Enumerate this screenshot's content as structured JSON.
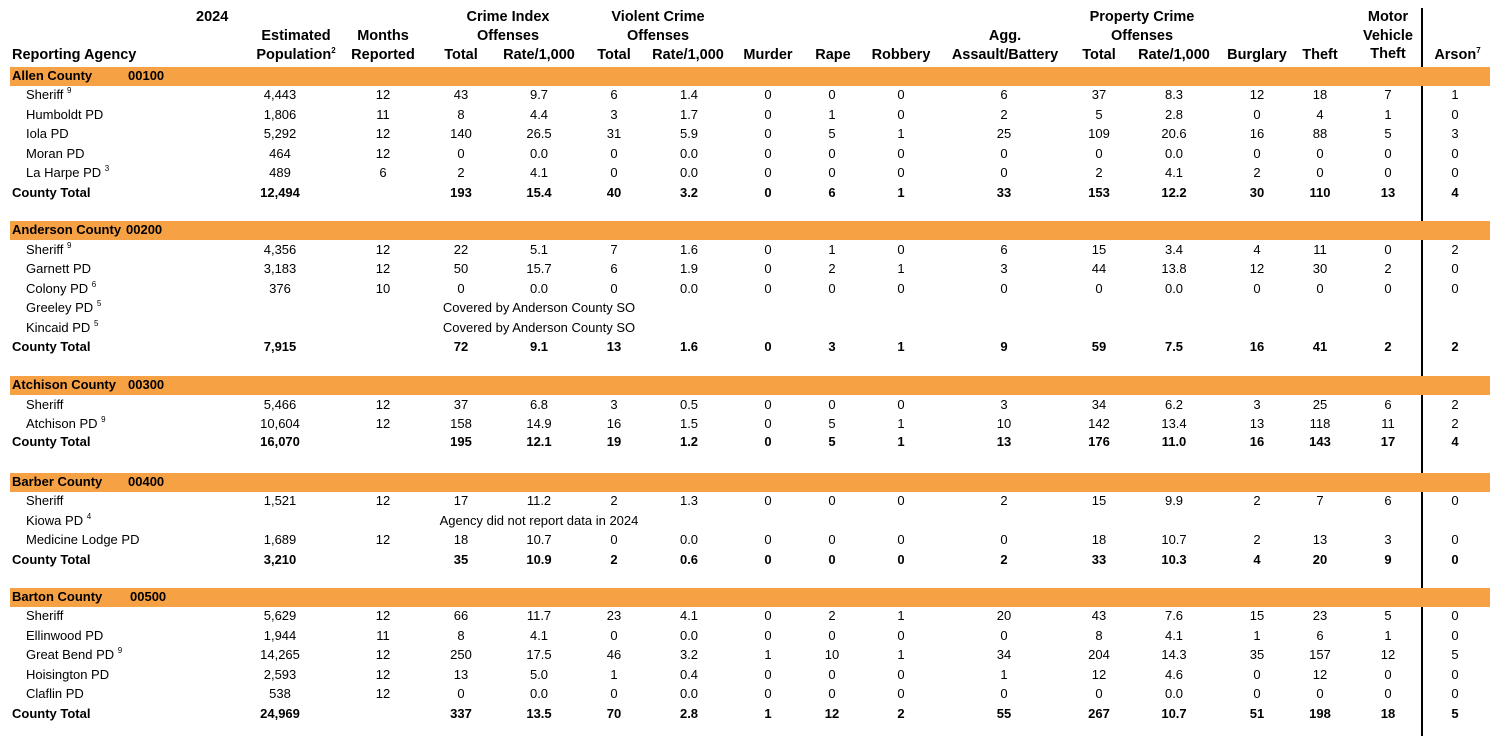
{
  "header": {
    "year": "2024",
    "reporting_agency": "Reporting Agency",
    "est_pop_line1": "Estimated",
    "est_pop_line2": "Population",
    "est_pop_sup": "2",
    "months_line1": "Months",
    "months_line2": "Reported",
    "crime_index_line1": "Crime Index",
    "crime_index_line2": "Offenses",
    "violent_line1": "Violent Crime",
    "violent_line2": "Offenses",
    "property_line1": "Property Crime",
    "property_line2": "Offenses",
    "agg_line1": "Agg.",
    "agg_line2": "Assault/Battery",
    "mv_line1": "Motor",
    "mv_line2": "Vehicle",
    "mv_line3": "Theft",
    "arson": "Arson",
    "arson_sup": "7",
    "total": "Total",
    "rate": "Rate/1,000",
    "murder": "Murder",
    "rape": "Rape",
    "robbery": "Robbery",
    "burglary": "Burglary",
    "theft": "Theft"
  },
  "counties": [
    {
      "name": "Allen County",
      "code": "00100",
      "rows": [
        {
          "agency": "Sheriff",
          "sup": "9",
          "vals": [
            "4,443",
            "12",
            "43",
            "9.7",
            "6",
            "1.4",
            "0",
            "0",
            "0",
            "6",
            "37",
            "8.3",
            "12",
            "18",
            "7",
            "1"
          ]
        },
        {
          "agency": "Humboldt PD",
          "sup": "",
          "vals": [
            "1,806",
            "11",
            "8",
            "4.4",
            "3",
            "1.7",
            "0",
            "1",
            "0",
            "2",
            "5",
            "2.8",
            "0",
            "4",
            "1",
            "0"
          ]
        },
        {
          "agency": "Iola PD",
          "sup": "",
          "vals": [
            "5,292",
            "12",
            "140",
            "26.5",
            "31",
            "5.9",
            "0",
            "5",
            "1",
            "25",
            "109",
            "20.6",
            "16",
            "88",
            "5",
            "3"
          ]
        },
        {
          "agency": "Moran PD",
          "sup": "",
          "vals": [
            "464",
            "12",
            "0",
            "0.0",
            "0",
            "0.0",
            "0",
            "0",
            "0",
            "0",
            "0",
            "0.0",
            "0",
            "0",
            "0",
            "0"
          ]
        },
        {
          "agency": "La Harpe PD",
          "sup": "3",
          "vals": [
            "489",
            "6",
            "2",
            "4.1",
            "0",
            "0.0",
            "0",
            "0",
            "0",
            "0",
            "2",
            "4.1",
            "2",
            "0",
            "0",
            "0"
          ]
        }
      ],
      "total": {
        "label": "County Total",
        "vals": [
          "12,494",
          "",
          "193",
          "15.4",
          "40",
          "3.2",
          "0",
          "6",
          "1",
          "33",
          "153",
          "12.2",
          "30",
          "110",
          "13",
          "4"
        ]
      }
    },
    {
      "name": "Anderson County",
      "code": "00200",
      "rows": [
        {
          "agency": "Sheriff",
          "sup": "9",
          "vals": [
            "4,356",
            "12",
            "22",
            "5.1",
            "7",
            "1.6",
            "0",
            "1",
            "0",
            "6",
            "15",
            "3.4",
            "4",
            "11",
            "0",
            "2"
          ]
        },
        {
          "agency": "Garnett PD",
          "sup": "",
          "vals": [
            "3,183",
            "12",
            "50",
            "15.7",
            "6",
            "1.9",
            "0",
            "2",
            "1",
            "3",
            "44",
            "13.8",
            "12",
            "30",
            "2",
            "0"
          ]
        },
        {
          "agency": "Colony PD",
          "sup": "6",
          "vals": [
            "376",
            "10",
            "0",
            "0.0",
            "0",
            "0.0",
            "0",
            "0",
            "0",
            "0",
            "0",
            "0.0",
            "0",
            "0",
            "0",
            "0"
          ]
        },
        {
          "agency": "Greeley PD",
          "sup": "5",
          "note": "Covered by Anderson County SO"
        },
        {
          "agency": "Kincaid PD",
          "sup": "5",
          "note": "Covered by Anderson County SO"
        }
      ],
      "total": {
        "label": "County Total",
        "vals": [
          "7,915",
          "",
          "72",
          "9.1",
          "13",
          "1.6",
          "0",
          "3",
          "1",
          "9",
          "59",
          "7.5",
          "16",
          "41",
          "2",
          "2"
        ]
      }
    },
    {
      "name": "Atchison County",
      "code": "00300",
      "rows": [
        {
          "agency": "Sheriff",
          "sup": "",
          "vals": [
            "5,466",
            "12",
            "37",
            "6.8",
            "3",
            "0.5",
            "0",
            "0",
            "0",
            "3",
            "34",
            "6.2",
            "3",
            "25",
            "6",
            "2"
          ]
        },
        {
          "agency": "Atchison PD",
          "sup": "9",
          "vals": [
            "10,604",
            "12",
            "158",
            "14.9",
            "16",
            "1.5",
            "0",
            "5",
            "1",
            "10",
            "142",
            "13.4",
            "13",
            "118",
            "11",
            "2"
          ]
        }
      ],
      "total": {
        "label": "County Total",
        "vals": [
          "16,070",
          "",
          "195",
          "12.1",
          "19",
          "1.2",
          "0",
          "5",
          "1",
          "13",
          "176",
          "11.0",
          "16",
          "143",
          "17",
          "4"
        ]
      }
    },
    {
      "name": "Barber County",
      "code": "00400",
      "rows": [
        {
          "agency": "Sheriff",
          "sup": "",
          "vals": [
            "1,521",
            "12",
            "17",
            "11.2",
            "2",
            "1.3",
            "0",
            "0",
            "0",
            "2",
            "15",
            "9.9",
            "2",
            "7",
            "6",
            "0"
          ]
        },
        {
          "agency": "Kiowa PD",
          "sup": "4",
          "note": "Agency did not report data in 2024"
        },
        {
          "agency": "Medicine Lodge PD",
          "sup": "",
          "vals": [
            "1,689",
            "12",
            "18",
            "10.7",
            "0",
            "0.0",
            "0",
            "0",
            "0",
            "0",
            "18",
            "10.7",
            "2",
            "13",
            "3",
            "0"
          ]
        }
      ],
      "total": {
        "label": "County Total",
        "vals": [
          "3,210",
          "",
          "35",
          "10.9",
          "2",
          "0.6",
          "0",
          "0",
          "0",
          "2",
          "33",
          "10.3",
          "4",
          "20",
          "9",
          "0"
        ]
      }
    },
    {
      "name": "Barton County",
      "code": "00500",
      "rows": [
        {
          "agency": "Sheriff",
          "sup": "",
          "vals": [
            "5,629",
            "12",
            "66",
            "11.7",
            "23",
            "4.1",
            "0",
            "2",
            "1",
            "20",
            "43",
            "7.6",
            "15",
            "23",
            "5",
            "0"
          ]
        },
        {
          "agency": "Ellinwood PD",
          "sup": "",
          "vals": [
            "1,944",
            "11",
            "8",
            "4.1",
            "0",
            "0.0",
            "0",
            "0",
            "0",
            "0",
            "8",
            "4.1",
            "1",
            "6",
            "1",
            "0"
          ]
        },
        {
          "agency": "Great Bend PD",
          "sup": "9",
          "vals": [
            "14,265",
            "12",
            "250",
            "17.5",
            "46",
            "3.2",
            "1",
            "10",
            "1",
            "34",
            "204",
            "14.3",
            "35",
            "157",
            "12",
            "5"
          ]
        },
        {
          "agency": "Hoisington PD",
          "sup": "",
          "vals": [
            "2,593",
            "12",
            "13",
            "5.0",
            "1",
            "0.4",
            "0",
            "0",
            "0",
            "1",
            "12",
            "4.6",
            "0",
            "12",
            "0",
            "0"
          ]
        },
        {
          "agency": "Claflin PD",
          "sup": "",
          "vals": [
            "538",
            "12",
            "0",
            "0.0",
            "0",
            "0.0",
            "0",
            "0",
            "0",
            "0",
            "0",
            "0.0",
            "0",
            "0",
            "0",
            "0"
          ]
        }
      ],
      "total": {
        "label": "County Total",
        "vals": [
          "24,969",
          "",
          "337",
          "13.5",
          "70",
          "2.8",
          "1",
          "12",
          "2",
          "55",
          "267",
          "10.7",
          "51",
          "198",
          "18",
          "5"
        ]
      }
    }
  ]
}
